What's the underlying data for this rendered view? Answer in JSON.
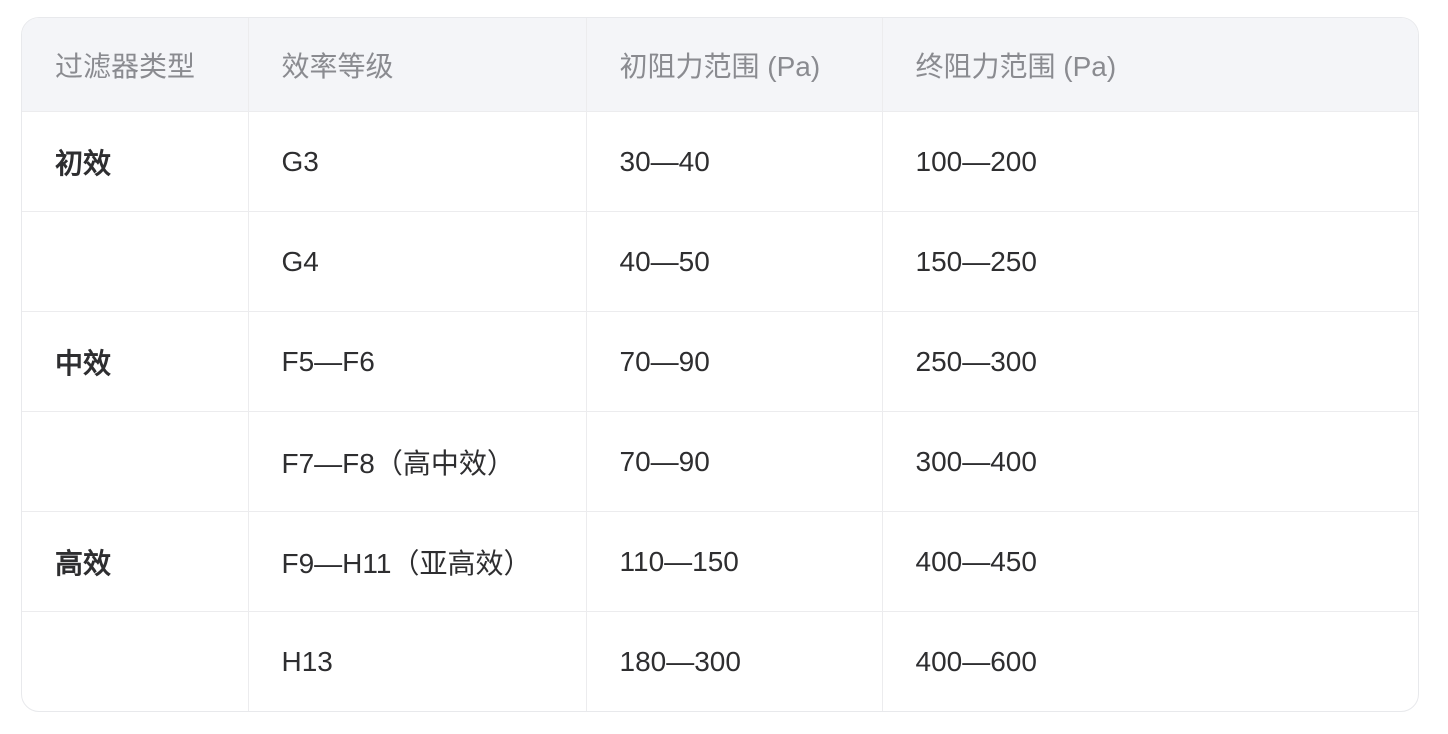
{
  "table": {
    "headers": [
      "过滤器类型",
      "效率等级",
      "初阻力范围 (Pa)",
      "终阻力范围 (Pa)"
    ],
    "rows": [
      [
        "初效",
        "G3",
        "30—40",
        "100—200"
      ],
      [
        "",
        "G4",
        "40—50",
        "150—250"
      ],
      [
        "中效",
        "F5—F6",
        "70—90",
        "250—300"
      ],
      [
        "",
        "F7—F8（高中效）",
        "70—90",
        "300—400"
      ],
      [
        "高效",
        "F9—H11（亚高效）",
        "110—150",
        "400—450"
      ],
      [
        "",
        "H13",
        "180—300",
        "400—600"
      ]
    ]
  }
}
